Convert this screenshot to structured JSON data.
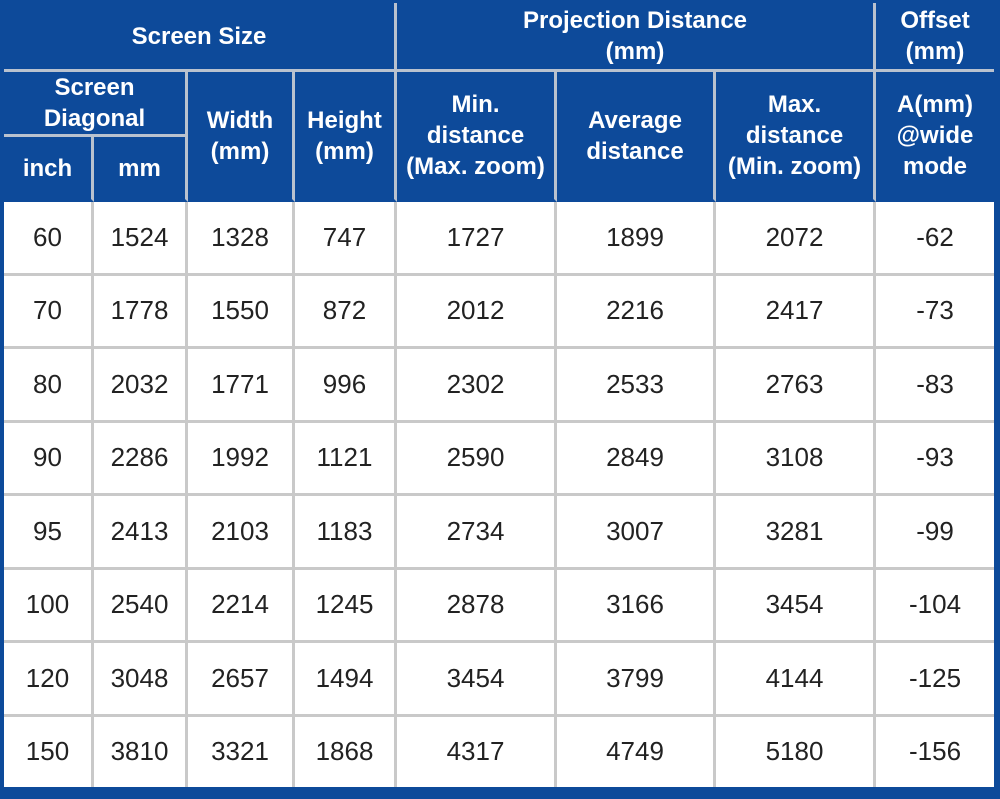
{
  "header": {
    "screen_size": "Screen Size",
    "projection_distance": "Projection Distance\n(mm)",
    "offset": "Offset\n(mm)",
    "screen_diagonal": "Screen\nDiagonal",
    "width": "Width\n(mm)",
    "height": "Height\n(mm)",
    "min_distance": "Min.\ndistance\n(Max. zoom)",
    "average_distance": "Average\ndistance",
    "max_distance": "Max.\ndistance\n(Min. zoom)",
    "offset_a": "A(mm)\n@wide\nmode",
    "inch": "inch",
    "mm": "mm"
  },
  "rows": [
    [
      "60",
      "1524",
      "1328",
      "747",
      "1727",
      "1899",
      "2072",
      "-62"
    ],
    [
      "70",
      "1778",
      "1550",
      "872",
      "2012",
      "2216",
      "2417",
      "-73"
    ],
    [
      "80",
      "2032",
      "1771",
      "996",
      "2302",
      "2533",
      "2763",
      "-83"
    ],
    [
      "90",
      "2286",
      "1992",
      "1121",
      "2590",
      "2849",
      "3108",
      "-93"
    ],
    [
      "95",
      "2413",
      "2103",
      "1183",
      "2734",
      "3007",
      "3281",
      "-99"
    ],
    [
      "100",
      "2540",
      "2214",
      "1245",
      "2878",
      "3166",
      "3454",
      "-104"
    ],
    [
      "120",
      "3048",
      "2657",
      "1494",
      "3454",
      "3799",
      "4144",
      "-125"
    ],
    [
      "150",
      "3810",
      "3321",
      "1868",
      "4317",
      "4749",
      "5180",
      "-156"
    ]
  ],
  "colors": {
    "header_bg": "#0d4a9a",
    "header_text": "#ffffff",
    "cell_bg": "#ffffff",
    "cell_text": "#222222"
  }
}
